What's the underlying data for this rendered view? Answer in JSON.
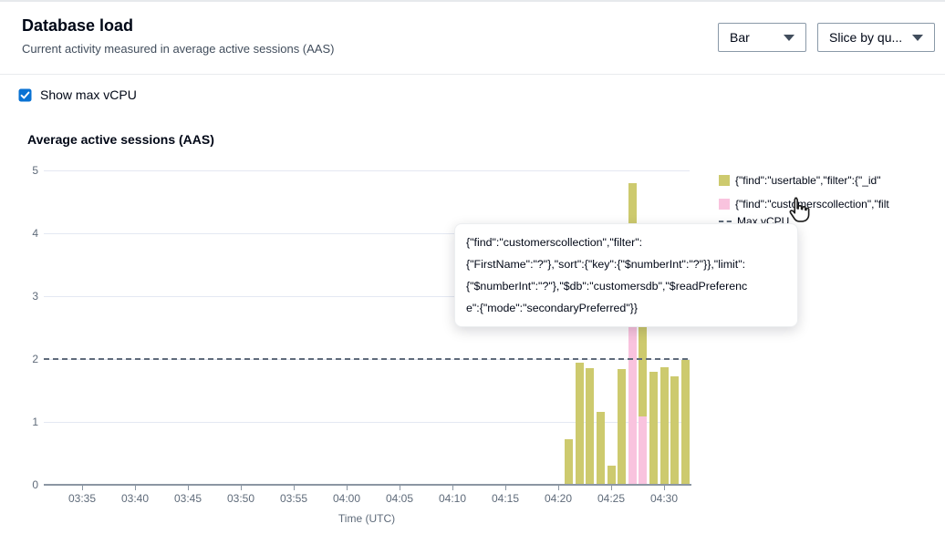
{
  "page": {
    "header": {
      "title": "Database load",
      "subtitle": "Current activity measured in average active sessions (AAS)"
    },
    "toolbar": {
      "chart_type": {
        "value": "Bar"
      },
      "slice_by": {
        "value": "Slice by qu..."
      }
    },
    "options": {
      "show_max_vcpu": {
        "label": "Show max vCPU",
        "checked": true
      }
    },
    "section_title": "Average active sessions (AAS)"
  },
  "legend": {
    "items": [
      {
        "swatch": "square",
        "color": "#cdca6e",
        "label": "{\"find\":\"usertable\",\"filter\":{\"_id\""
      },
      {
        "swatch": "square",
        "color": "#f9c3de",
        "label": "{\"find\":\"customerscollection\",\"filt"
      },
      {
        "swatch": "dash",
        "color": "#5f6b7a",
        "label": "Max vCPU"
      }
    ]
  },
  "tooltip": {
    "lines": [
      "{\"find\":\"customerscollection\",\"filter\":",
      "{\"FirstName\":\"?\"},\"sort\":{\"key\":{\"$numberInt\":\"?\"}},\"limit\":",
      "{\"$numberInt\":\"?\"},\"$db\":\"customersdb\",\"$readPreferenc",
      "e\":{\"mode\":\"secondaryPreferred\"}}"
    ],
    "text": "{\"find\":\"customerscollection\",\"filter\":{\"FirstName\":\"?\"},\"sort\":{\"key\":{\"$numberInt\":\"?\"}},\"limit\":{\"$numberInt\":\"?\"},\"$db\":\"customersdb\",\"$readPreference\":{\"mode\":\"secondaryPreferred\"}}"
  },
  "chart_data": {
    "type": "bar",
    "stacked": true,
    "title": "Average active sessions (AAS)",
    "xlabel": "Time (UTC)",
    "ylabel": "Average active sessions (AAS)",
    "ylim": [
      0,
      5
    ],
    "y_ticks": [
      0,
      1,
      2,
      3,
      4,
      5
    ],
    "x_ticks": [
      "03:35",
      "03:40",
      "03:45",
      "03:50",
      "03:55",
      "04:00",
      "04:05",
      "04:10",
      "04:15",
      "04:20",
      "04:25",
      "04:30"
    ],
    "grid": true,
    "legend_position": "right",
    "max_vcpu": 2,
    "categories": [
      "04:21",
      "04:22",
      "04:23",
      "04:24",
      "04:25",
      "04:26",
      "04:27",
      "04:28",
      "04:29",
      "04:30",
      "04:31",
      "04:32"
    ],
    "series": [
      {
        "name": "{\"find\":\"customerscollection\",\"filt",
        "color": "#f9c3de",
        "values": [
          0,
          0,
          0,
          0,
          0,
          0,
          3.3,
          1.08,
          0,
          0,
          0,
          0
        ]
      },
      {
        "name": "{\"find\":\"usertable\",\"filter\":{\"_id\"",
        "color": "#cdca6e",
        "values": [
          0.72,
          1.94,
          1.85,
          1.16,
          0.3,
          1.84,
          1.5,
          2.1,
          1.8,
          1.87,
          1.73,
          1.98
        ]
      }
    ]
  },
  "colors": {
    "accent_blue": "#0972d3",
    "bar_usertable": "#cdca6e",
    "bar_customerscollection": "#f9c3de",
    "max_vcpu_line": "#5f6b7a"
  }
}
